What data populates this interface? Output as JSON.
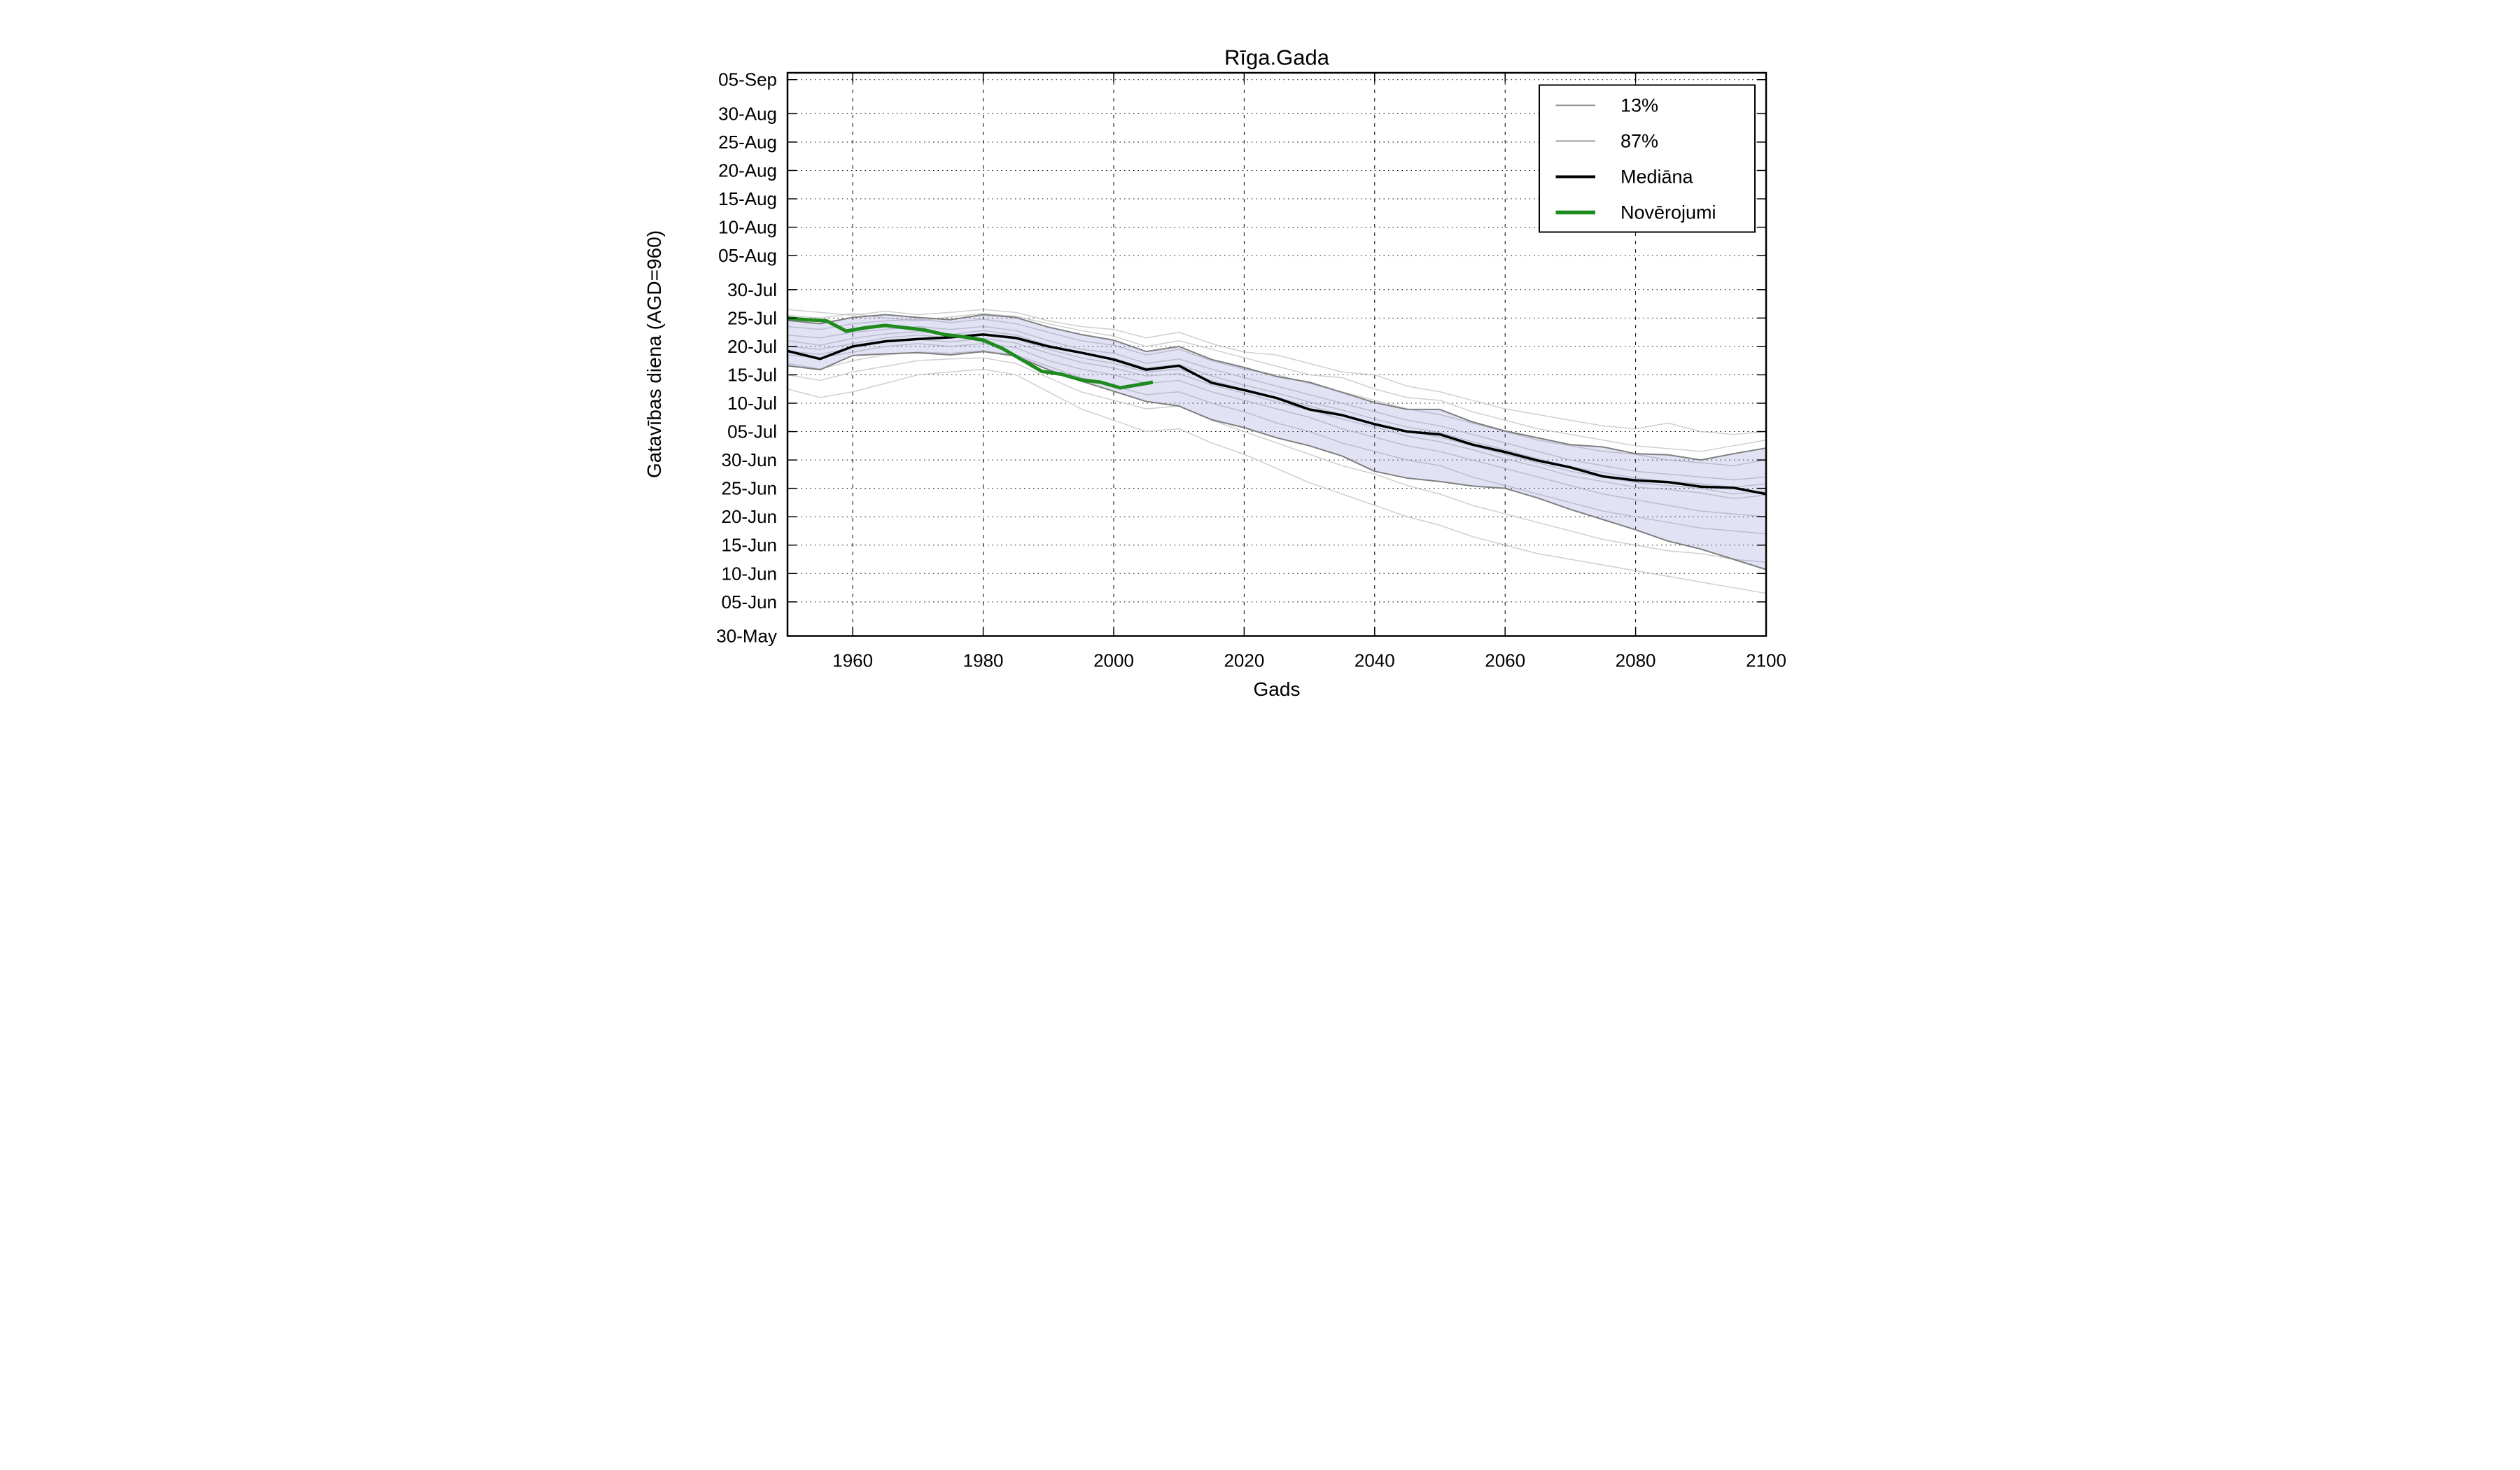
{
  "title": "Rīga.Gada",
  "axes": {
    "xlabel": "Gads",
    "ylabel": "Gatavības diena (AGD=960)"
  },
  "legend": {
    "position": "upper right",
    "items": [
      {
        "label": "13%",
        "color": "#8e8e8e",
        "width": 4
      },
      {
        "label": "87%",
        "color": "#9a9a9a",
        "width": 4
      },
      {
        "label": "Mediāna",
        "color": "#000000",
        "width": 8
      },
      {
        "label": "Novērojumi",
        "color": "#1f8b1f",
        "width": 11
      }
    ]
  },
  "chart_data": {
    "type": "line",
    "title": "Rīga.Gada",
    "xlabel": "Gads",
    "ylabel": "Gatavības diena (AGD=960)",
    "grid": true,
    "x_range": [
      1950,
      2100
    ],
    "y_range_days": [
      150,
      249.2
    ],
    "x_ticks": [
      1960,
      1980,
      2000,
      2020,
      2040,
      2060,
      2080,
      2100
    ],
    "y_ticks": [
      {
        "label": "30-May",
        "day": 150
      },
      {
        "label": "05-Jun",
        "day": 156
      },
      {
        "label": "10-Jun",
        "day": 161
      },
      {
        "label": "15-Jun",
        "day": 166
      },
      {
        "label": "20-Jun",
        "day": 171
      },
      {
        "label": "25-Jun",
        "day": 176
      },
      {
        "label": "30-Jun",
        "day": 181
      },
      {
        "label": "05-Jul",
        "day": 186
      },
      {
        "label": "10-Jul",
        "day": 191
      },
      {
        "label": "15-Jul",
        "day": 196
      },
      {
        "label": "20-Jul",
        "day": 201
      },
      {
        "label": "25-Jul",
        "day": 206
      },
      {
        "label": "30-Jul",
        "day": 211
      },
      {
        "label": "05-Aug",
        "day": 217
      },
      {
        "label": "10-Aug",
        "day": 222
      },
      {
        "label": "15-Aug",
        "day": 227
      },
      {
        "label": "20-Aug",
        "day": 232
      },
      {
        "label": "25-Aug",
        "day": 237
      },
      {
        "label": "30-Aug",
        "day": 242
      },
      {
        "label": "05-Sep",
        "day": 248
      }
    ],
    "years": [
      1950,
      1955,
      1960,
      1965,
      1970,
      1975,
      1980,
      1985,
      1990,
      1995,
      2000,
      2005,
      2010,
      2015,
      2020,
      2025,
      2030,
      2035,
      2040,
      2045,
      2050,
      2055,
      2060,
      2065,
      2070,
      2075,
      2080,
      2085,
      2090,
      2095,
      2100
    ],
    "series": [
      {
        "name": "Mediāna",
        "color": "#000000",
        "stroke_width": 7,
        "values_day": [
          200.2,
          198.8,
          201.0,
          201.9,
          202.3,
          202.6,
          203.1,
          202.5,
          201.0,
          199.9,
          198.7,
          196.9,
          197.6,
          194.6,
          193.3,
          191.9,
          189.9,
          188.9,
          187.3,
          186.0,
          185.5,
          183.7,
          182.4,
          180.9,
          179.7,
          178.1,
          177.4,
          177.1,
          176.3,
          176.1,
          175.0
        ]
      },
      {
        "name": "87%",
        "color": "#7f7f7f",
        "stroke_width": 4,
        "values_day": [
          205.6,
          205.0,
          206.1,
          206.6,
          206.1,
          205.7,
          206.6,
          206.1,
          204.4,
          203.1,
          202.1,
          200.1,
          201.0,
          198.7,
          197.3,
          195.7,
          194.7,
          192.9,
          191.1,
          189.9,
          189.9,
          187.7,
          186.1,
          184.9,
          183.7,
          183.3,
          182.1,
          181.9,
          181.0,
          182.1,
          183.1
        ]
      },
      {
        "name": "13%",
        "color": "#7f7f7f",
        "stroke_width": 4,
        "values_day": [
          197.6,
          196.9,
          199.4,
          199.7,
          199.9,
          199.5,
          200.1,
          199.3,
          196.9,
          194.9,
          193.1,
          191.3,
          190.5,
          188.1,
          186.7,
          184.9,
          183.5,
          181.7,
          179.0,
          177.8,
          177.2,
          176.4,
          176.0,
          174.3,
          172.3,
          170.5,
          168.7,
          166.7,
          165.3,
          163.5,
          161.7
        ]
      }
    ],
    "observations": {
      "name": "Novērojumi",
      "color": "#1f8b1f",
      "stroke_width": 10,
      "years": [
        1950,
        1953,
        1956,
        1959,
        1962,
        1965,
        1968,
        1971,
        1974,
        1977,
        1980,
        1983,
        1986,
        1989,
        1992,
        1995,
        1998,
        2001,
        2004,
        2006
      ],
      "values_day": [
        206.0,
        205.7,
        205.5,
        203.7,
        204.3,
        204.7,
        204.3,
        203.9,
        203.1,
        202.7,
        202.1,
        200.6,
        198.6,
        196.6,
        196.1,
        195.1,
        194.7,
        193.7,
        194.3,
        194.7
      ]
    },
    "band": {
      "between": [
        "13%",
        "87%"
      ],
      "fill": "rgba(125,125,210,0.22)"
    },
    "ensemble_runs": {
      "color": "#c3c3c3",
      "stroke_width": 3,
      "opacity": 0.8,
      "runs": [
        [
          207.5,
          207.0,
          206.5,
          207.2,
          206.6,
          207.0,
          207.5,
          207.0,
          205.5,
          204.5,
          204.0,
          202.5,
          203.5,
          201.5,
          200.0,
          199.5,
          198.0,
          196.5,
          196.0,
          194.0,
          193.0,
          191.5,
          190.0,
          189.0,
          188.0,
          187.0,
          186.5,
          187.5,
          186.0,
          185.5,
          186.0
        ],
        [
          206.5,
          206.0,
          206.8,
          206.0,
          205.5,
          206.2,
          206.8,
          206.3,
          205.0,
          203.8,
          202.8,
          201.0,
          202.0,
          200.5,
          199.0,
          197.5,
          196.0,
          195.5,
          193.5,
          192.0,
          191.5,
          189.5,
          188.0,
          186.5,
          185.5,
          184.5,
          183.5,
          183.0,
          182.5,
          183.5,
          184.5
        ],
        [
          204.5,
          204.0,
          205.0,
          205.5,
          205.8,
          205.2,
          205.8,
          205.0,
          203.5,
          202.0,
          201.2,
          199.5,
          200.5,
          198.5,
          197.0,
          196.0,
          194.5,
          193.0,
          191.5,
          190.0,
          189.0,
          187.5,
          186.0,
          184.5,
          183.5,
          182.5,
          182.0,
          181.0,
          180.5,
          180.0,
          181.0
        ],
        [
          203.0,
          202.5,
          203.5,
          204.0,
          204.5,
          204.0,
          204.5,
          203.8,
          202.0,
          200.5,
          199.8,
          198.0,
          198.8,
          197.0,
          195.5,
          194.0,
          192.5,
          191.0,
          189.5,
          188.0,
          187.0,
          185.5,
          184.0,
          182.5,
          181.0,
          180.0,
          179.0,
          178.5,
          178.0,
          177.5,
          178.0
        ],
        [
          202.0,
          201.2,
          202.4,
          203.2,
          203.6,
          203.1,
          203.8,
          203.0,
          201.2,
          199.8,
          198.9,
          197.2,
          197.8,
          195.8,
          194.2,
          192.8,
          191.2,
          189.8,
          188.2,
          186.8,
          185.8,
          184.2,
          182.8,
          181.2,
          179.8,
          178.8,
          177.8,
          177.2,
          176.8,
          176.2,
          176.8
        ],
        [
          201.0,
          200.5,
          201.5,
          202.5,
          203.0,
          202.5,
          203.0,
          202.3,
          200.5,
          199.0,
          198.0,
          196.5,
          197.0,
          195.0,
          193.5,
          192.0,
          190.5,
          189.0,
          187.5,
          186.0,
          185.0,
          183.5,
          182.0,
          180.5,
          179.0,
          178.0,
          177.0,
          176.5,
          176.0,
          175.0,
          175.5
        ],
        [
          200.2,
          199.6,
          200.8,
          201.8,
          202.2,
          201.8,
          202.4,
          201.6,
          199.8,
          198.2,
          197.2,
          195.8,
          196.2,
          194.2,
          192.8,
          191.2,
          189.8,
          188.2,
          186.8,
          185.2,
          184.2,
          182.8,
          181.2,
          179.8,
          178.2,
          177.2,
          176.2,
          175.8,
          175.2,
          174.2,
          174.8
        ],
        [
          199.5,
          199.0,
          200.0,
          201.0,
          201.5,
          201.0,
          201.5,
          200.8,
          198.5,
          197.0,
          196.0,
          194.5,
          195.0,
          193.0,
          191.5,
          190.0,
          188.5,
          186.5,
          185.0,
          183.5,
          182.5,
          181.0,
          179.5,
          178.0,
          176.5,
          175.0,
          174.0,
          173.0,
          172.0,
          171.5,
          171.0
        ],
        [
          198.0,
          197.0,
          198.5,
          199.5,
          200.0,
          199.8,
          200.2,
          199.5,
          197.5,
          195.5,
          194.0,
          192.5,
          193.0,
          191.0,
          189.5,
          187.5,
          186.0,
          184.0,
          182.5,
          181.0,
          180.0,
          178.0,
          176.5,
          175.0,
          173.5,
          172.0,
          171.0,
          170.0,
          169.0,
          168.5,
          168.0
        ],
        [
          196.0,
          195.0,
          196.5,
          197.5,
          198.5,
          198.8,
          199.0,
          198.0,
          195.5,
          193.0,
          191.5,
          190.0,
          190.5,
          188.0,
          186.0,
          184.0,
          182.0,
          180.0,
          178.5,
          176.5,
          175.0,
          173.0,
          171.5,
          170.0,
          168.5,
          167.0,
          166.0,
          165.0,
          164.5,
          163.5,
          163.0
        ],
        [
          193.5,
          192.0,
          193.0,
          194.5,
          196.0,
          196.5,
          197.0,
          196.0,
          193.0,
          190.0,
          188.0,
          186.0,
          186.5,
          184.0,
          182.0,
          179.5,
          177.0,
          175.0,
          173.0,
          171.0,
          169.5,
          167.5,
          166.0,
          164.5,
          163.5,
          162.5,
          161.5,
          160.5,
          159.5,
          158.5,
          157.5
        ]
      ]
    },
    "style": {
      "background": "#ffffff",
      "spine_color": "#000000",
      "spine_width": 5,
      "grid_color": "#000000",
      "h_grid_dash": "3 10",
      "v_grid_dash": "10 14",
      "tick_length": 26,
      "tick_width": 3
    }
  }
}
